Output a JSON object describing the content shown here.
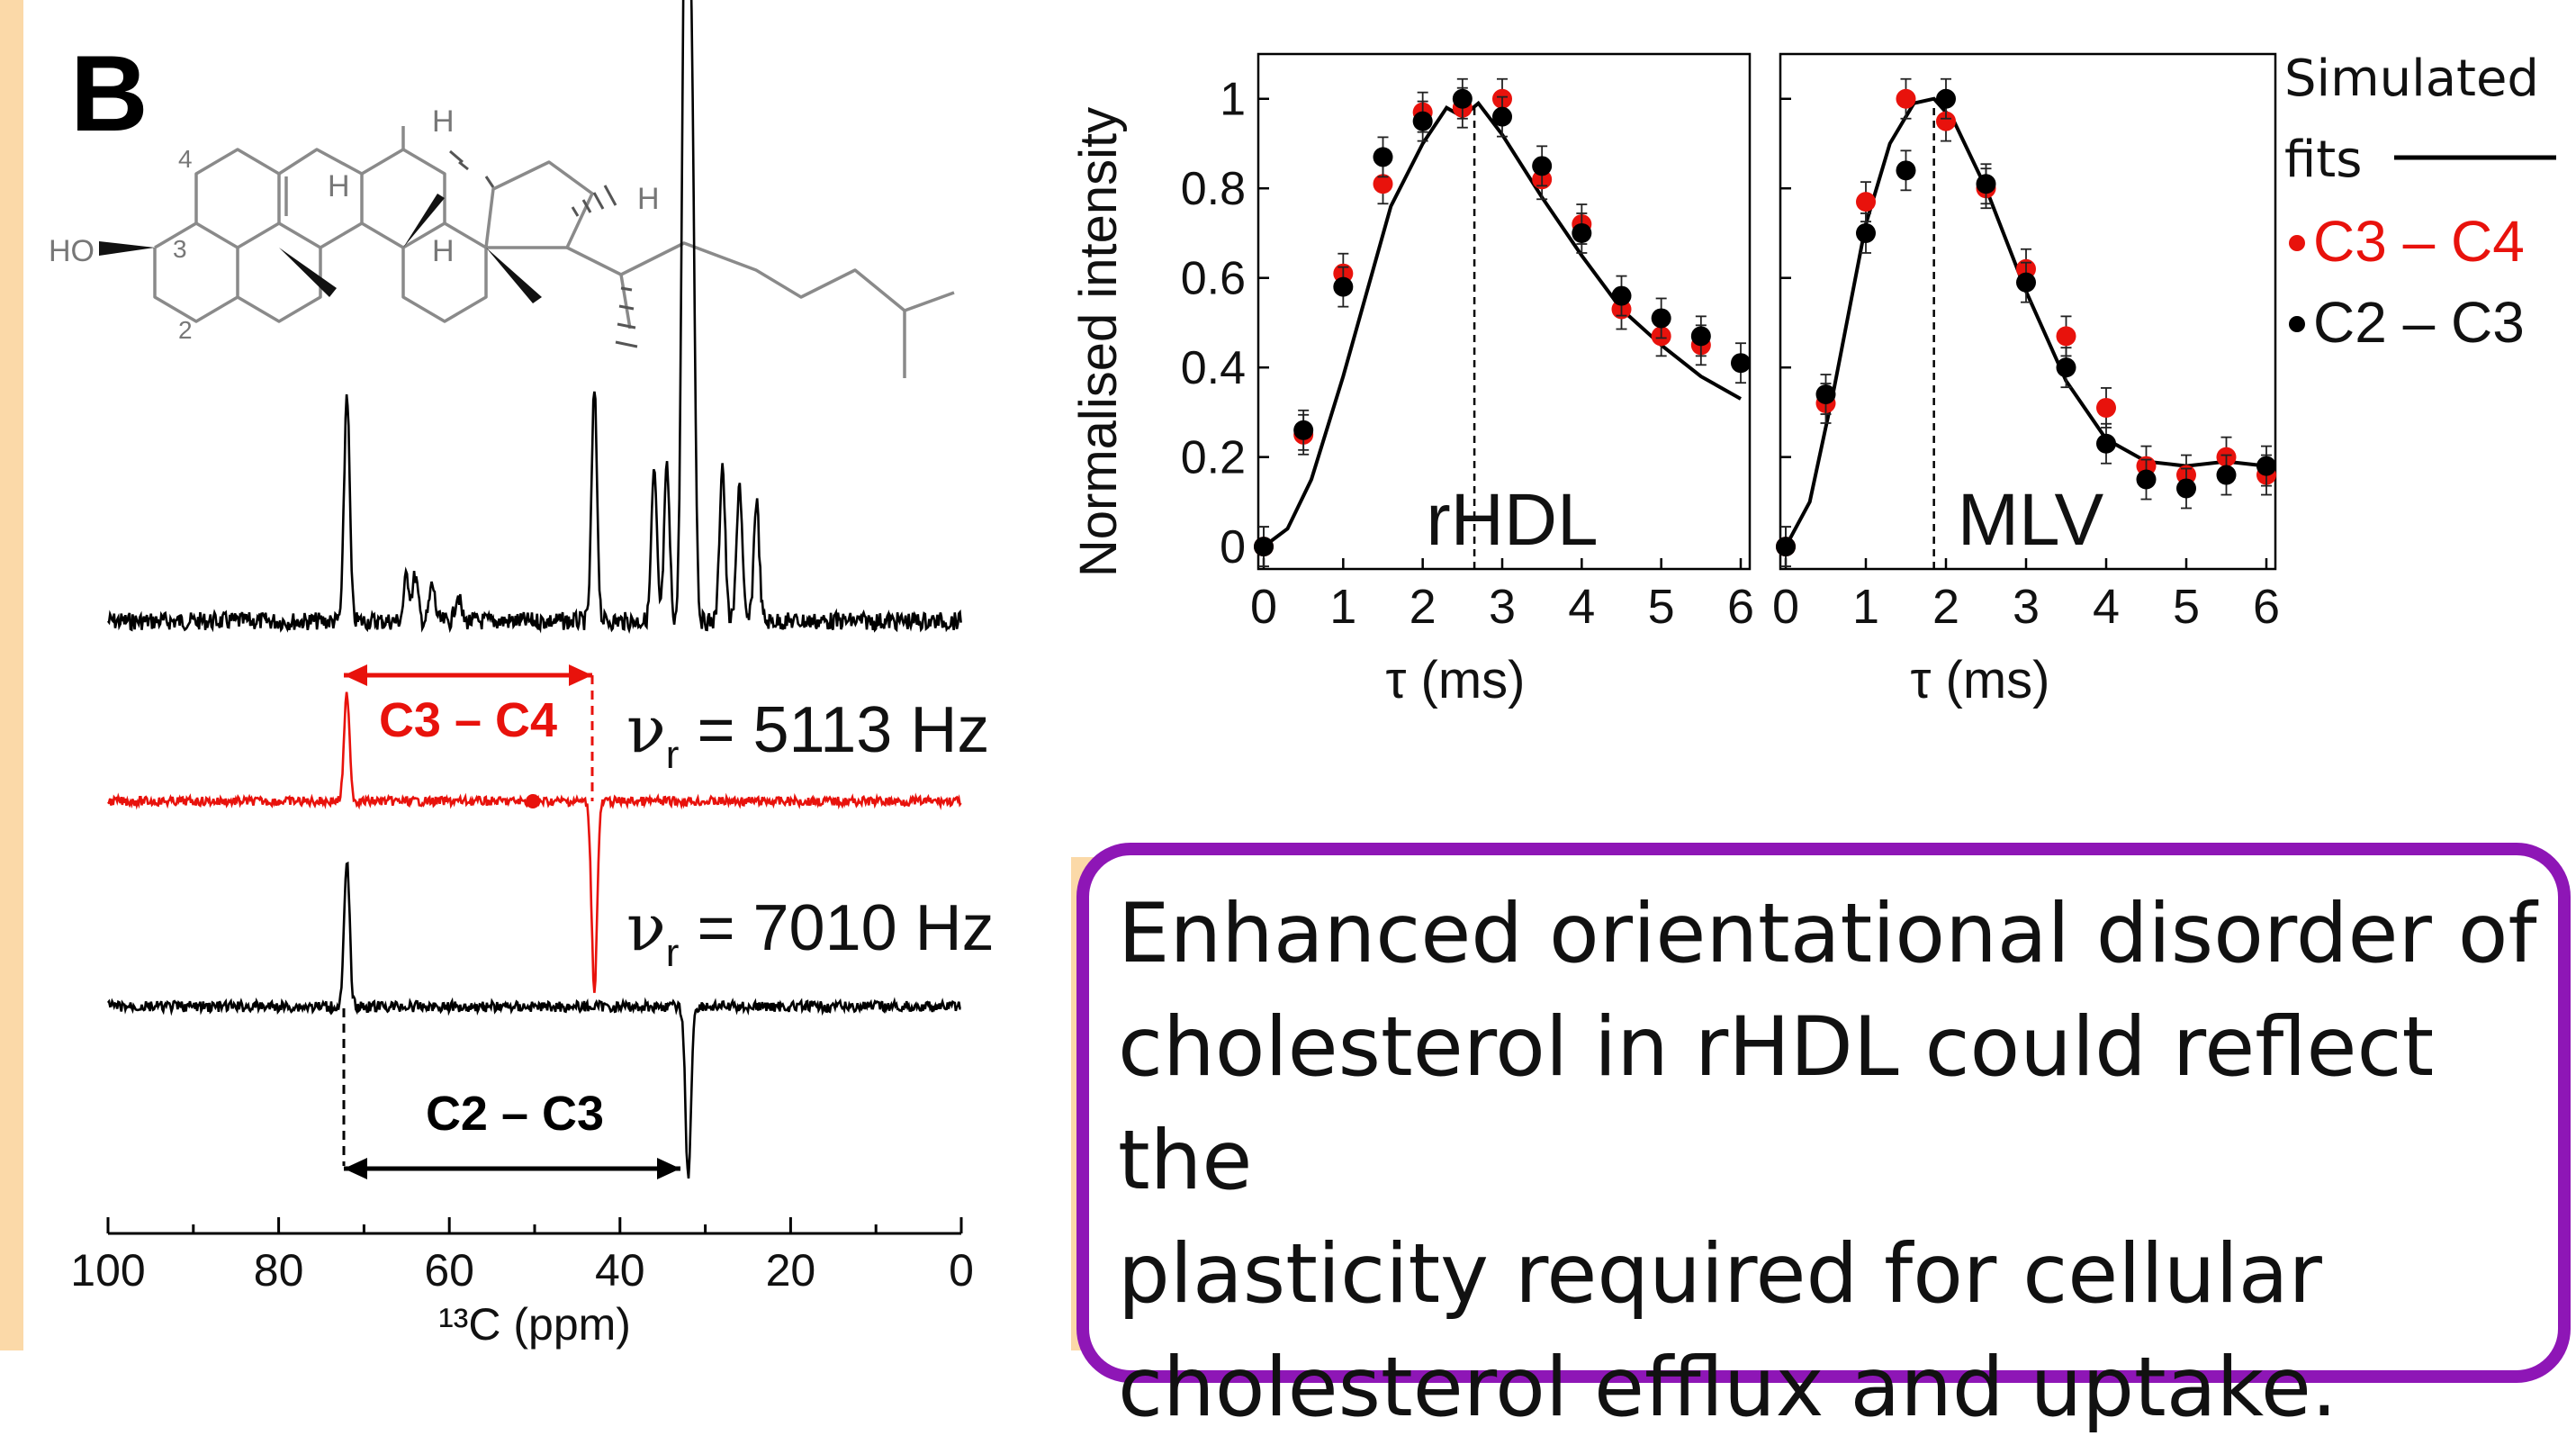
{
  "panel_label": "B",
  "structure": {
    "atom_labels": [
      "4",
      "3",
      "2",
      "HO",
      "H",
      "H",
      "H",
      "H"
    ]
  },
  "spectra": {
    "x_axis": {
      "ticks": [
        "100",
        "80",
        "60",
        "40",
        "20",
        "0"
      ],
      "label": "¹³C (ppm)",
      "range": [
        100,
        0
      ]
    },
    "traces": [
      {
        "name": "full spectrum",
        "color": "#000000",
        "peaks_ppm": [
          72,
          65,
          64,
          62,
          59,
          43,
          36,
          34.5,
          32.5,
          32,
          31.5,
          28,
          26,
          24
        ]
      },
      {
        "name": "C3-C4 selective",
        "color": "#e8120c",
        "label": "νr = 5113 Hz",
        "pos_ppm": 72,
        "neg_ppm": 43,
        "arrow_label": "C3 – C4"
      },
      {
        "name": "C2-C3 selective",
        "color": "#000000",
        "label": "νr = 7010 Hz",
        "pos_ppm": 72,
        "neg_ppm": 32,
        "arrow_label": "C2 – C3"
      }
    ]
  },
  "chart_data": [
    {
      "type": "scatter",
      "title": "rHDL",
      "xlabel": "τ (ms)",
      "ylabel": "Normalised intensity",
      "xlim": [
        0,
        6
      ],
      "ylim": [
        -0.05,
        1.1
      ],
      "xticks": [
        "0",
        "1",
        "2",
        "3",
        "4",
        "5",
        "6"
      ],
      "yticks": [
        "0",
        "0.2",
        "0.4",
        "0.6",
        "0.8",
        "1"
      ],
      "dashed_x": 2.65,
      "series": [
        {
          "name": "C3 – C4",
          "color": "#e8120c",
          "x": [
            0,
            0.5,
            1,
            1.5,
            2,
            2.5,
            3,
            3.5,
            4,
            4.5,
            5,
            5.5
          ],
          "y": [
            0,
            0.25,
            0.61,
            0.81,
            0.97,
            0.98,
            1.0,
            0.82,
            0.72,
            0.53,
            0.47,
            0.45
          ]
        },
        {
          "name": "C2 – C3",
          "color": "#000000",
          "x": [
            0,
            0.5,
            1,
            1.5,
            2,
            2.5,
            3,
            3.5,
            4,
            4.5,
            5,
            5.5,
            6
          ],
          "y": [
            0,
            0.26,
            0.58,
            0.87,
            0.95,
            1.0,
            0.96,
            0.85,
            0.7,
            0.56,
            0.51,
            0.47,
            0.41
          ]
        }
      ],
      "fit": {
        "x": [
          0,
          0.3,
          0.6,
          1,
          1.3,
          1.6,
          2,
          2.3,
          2.5,
          2.7,
          3,
          3.5,
          4,
          4.5,
          5,
          5.5,
          6
        ],
        "y": [
          0,
          0.04,
          0.15,
          0.38,
          0.57,
          0.76,
          0.9,
          0.98,
          0.96,
          0.99,
          0.92,
          0.78,
          0.65,
          0.53,
          0.45,
          0.38,
          0.33
        ]
      }
    },
    {
      "type": "scatter",
      "title": "MLV",
      "xlabel": "τ (ms)",
      "xlim": [
        0,
        6
      ],
      "ylim": [
        -0.05,
        1.1
      ],
      "xticks": [
        "0",
        "1",
        "2",
        "3",
        "4",
        "5",
        "6"
      ],
      "dashed_x": 1.85,
      "series": [
        {
          "name": "C3 – C4",
          "color": "#e8120c",
          "x": [
            0,
            0.5,
            1,
            1.5,
            2,
            2.5,
            3,
            3.5,
            4,
            4.5,
            5,
            5.5,
            6
          ],
          "y": [
            0,
            0.32,
            0.77,
            1.0,
            0.95,
            0.8,
            0.62,
            0.47,
            0.31,
            0.18,
            0.16,
            0.2,
            0.16
          ]
        },
        {
          "name": "C2 – C3",
          "color": "#000000",
          "x": [
            0,
            0.5,
            1,
            1.5,
            2,
            2.5,
            3,
            3.5,
            4,
            4.5,
            5,
            5.5,
            6
          ],
          "y": [
            0,
            0.34,
            0.7,
            0.84,
            1.0,
            0.81,
            0.59,
            0.4,
            0.23,
            0.15,
            0.13,
            0.16,
            0.18
          ]
        }
      ],
      "fit": {
        "x": [
          0,
          0.3,
          0.6,
          1,
          1.3,
          1.6,
          1.85,
          2.1,
          2.5,
          3,
          3.5,
          4,
          4.5,
          5,
          5.5,
          6
        ],
        "y": [
          0,
          0.1,
          0.35,
          0.72,
          0.9,
          0.99,
          1.0,
          0.95,
          0.8,
          0.57,
          0.37,
          0.24,
          0.19,
          0.18,
          0.19,
          0.18
        ]
      }
    }
  ],
  "legend": {
    "fits_line1": "Simulated",
    "fits_line2": "fits",
    "items": [
      {
        "label": "C3 – C4",
        "color": "#e8120c"
      },
      {
        "label": "C2 – C3",
        "color": "#000000"
      }
    ]
  },
  "conclusion": [
    "Enhanced orientational disorder of",
    "cholesterol in rHDL could reflect the",
    "plasticity required for cellular",
    "cholesterol efflux and uptake."
  ],
  "colors": {
    "red": "#e8120c",
    "purple": "#8e16b6",
    "orange": "#fbd9a8"
  }
}
